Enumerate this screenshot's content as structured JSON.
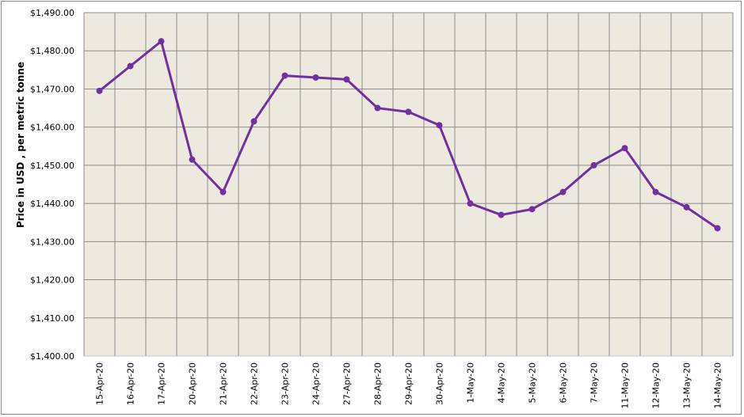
{
  "chart_data": {
    "type": "line",
    "title": "",
    "xlabel": "",
    "ylabel": "Price in USD , per metric tonne",
    "ylim": [
      1400,
      1490
    ],
    "yticks": [
      1400,
      1410,
      1420,
      1430,
      1440,
      1450,
      1460,
      1470,
      1480,
      1490
    ],
    "ytick_labels": [
      "$1,400.00",
      "$1,410.00",
      "$1,420.00",
      "$1,430.00",
      "$1,440.00",
      "$1,450.00",
      "$1,460.00",
      "$1,470.00",
      "$1,480.00",
      "$1,490.00"
    ],
    "grid": true,
    "legend": null,
    "categories": [
      "15-Apr-20",
      "16-Apr-20",
      "17-Apr-20",
      "20-Apr-20",
      "21-Apr-20",
      "22-Apr-20",
      "23-Apr-20",
      "24-Apr-20",
      "27-Apr-20",
      "28-Apr-20",
      "29-Apr-20",
      "30-Apr-20",
      "1-May-20",
      "4-May-20",
      "5-May-20",
      "6-May-20",
      "7-May-20",
      "11-May-20",
      "12-May-20",
      "13-May-20",
      "14-May-20"
    ],
    "series": [
      {
        "name": "Price",
        "color": "#7030a0",
        "values": [
          1469.5,
          1476.0,
          1482.5,
          1451.5,
          1443.0,
          1461.5,
          1473.5,
          1473.0,
          1472.5,
          1465.0,
          1464.0,
          1460.5,
          1440.0,
          1437.0,
          1438.5,
          1443.0,
          1450.0,
          1454.5,
          1443.0,
          1439.0,
          1433.5
        ]
      }
    ]
  },
  "colors": {
    "plot_background": "#ede9df",
    "gridline": "#8c8c8c",
    "line": "#7030a0",
    "border": "#8a8a8a"
  }
}
